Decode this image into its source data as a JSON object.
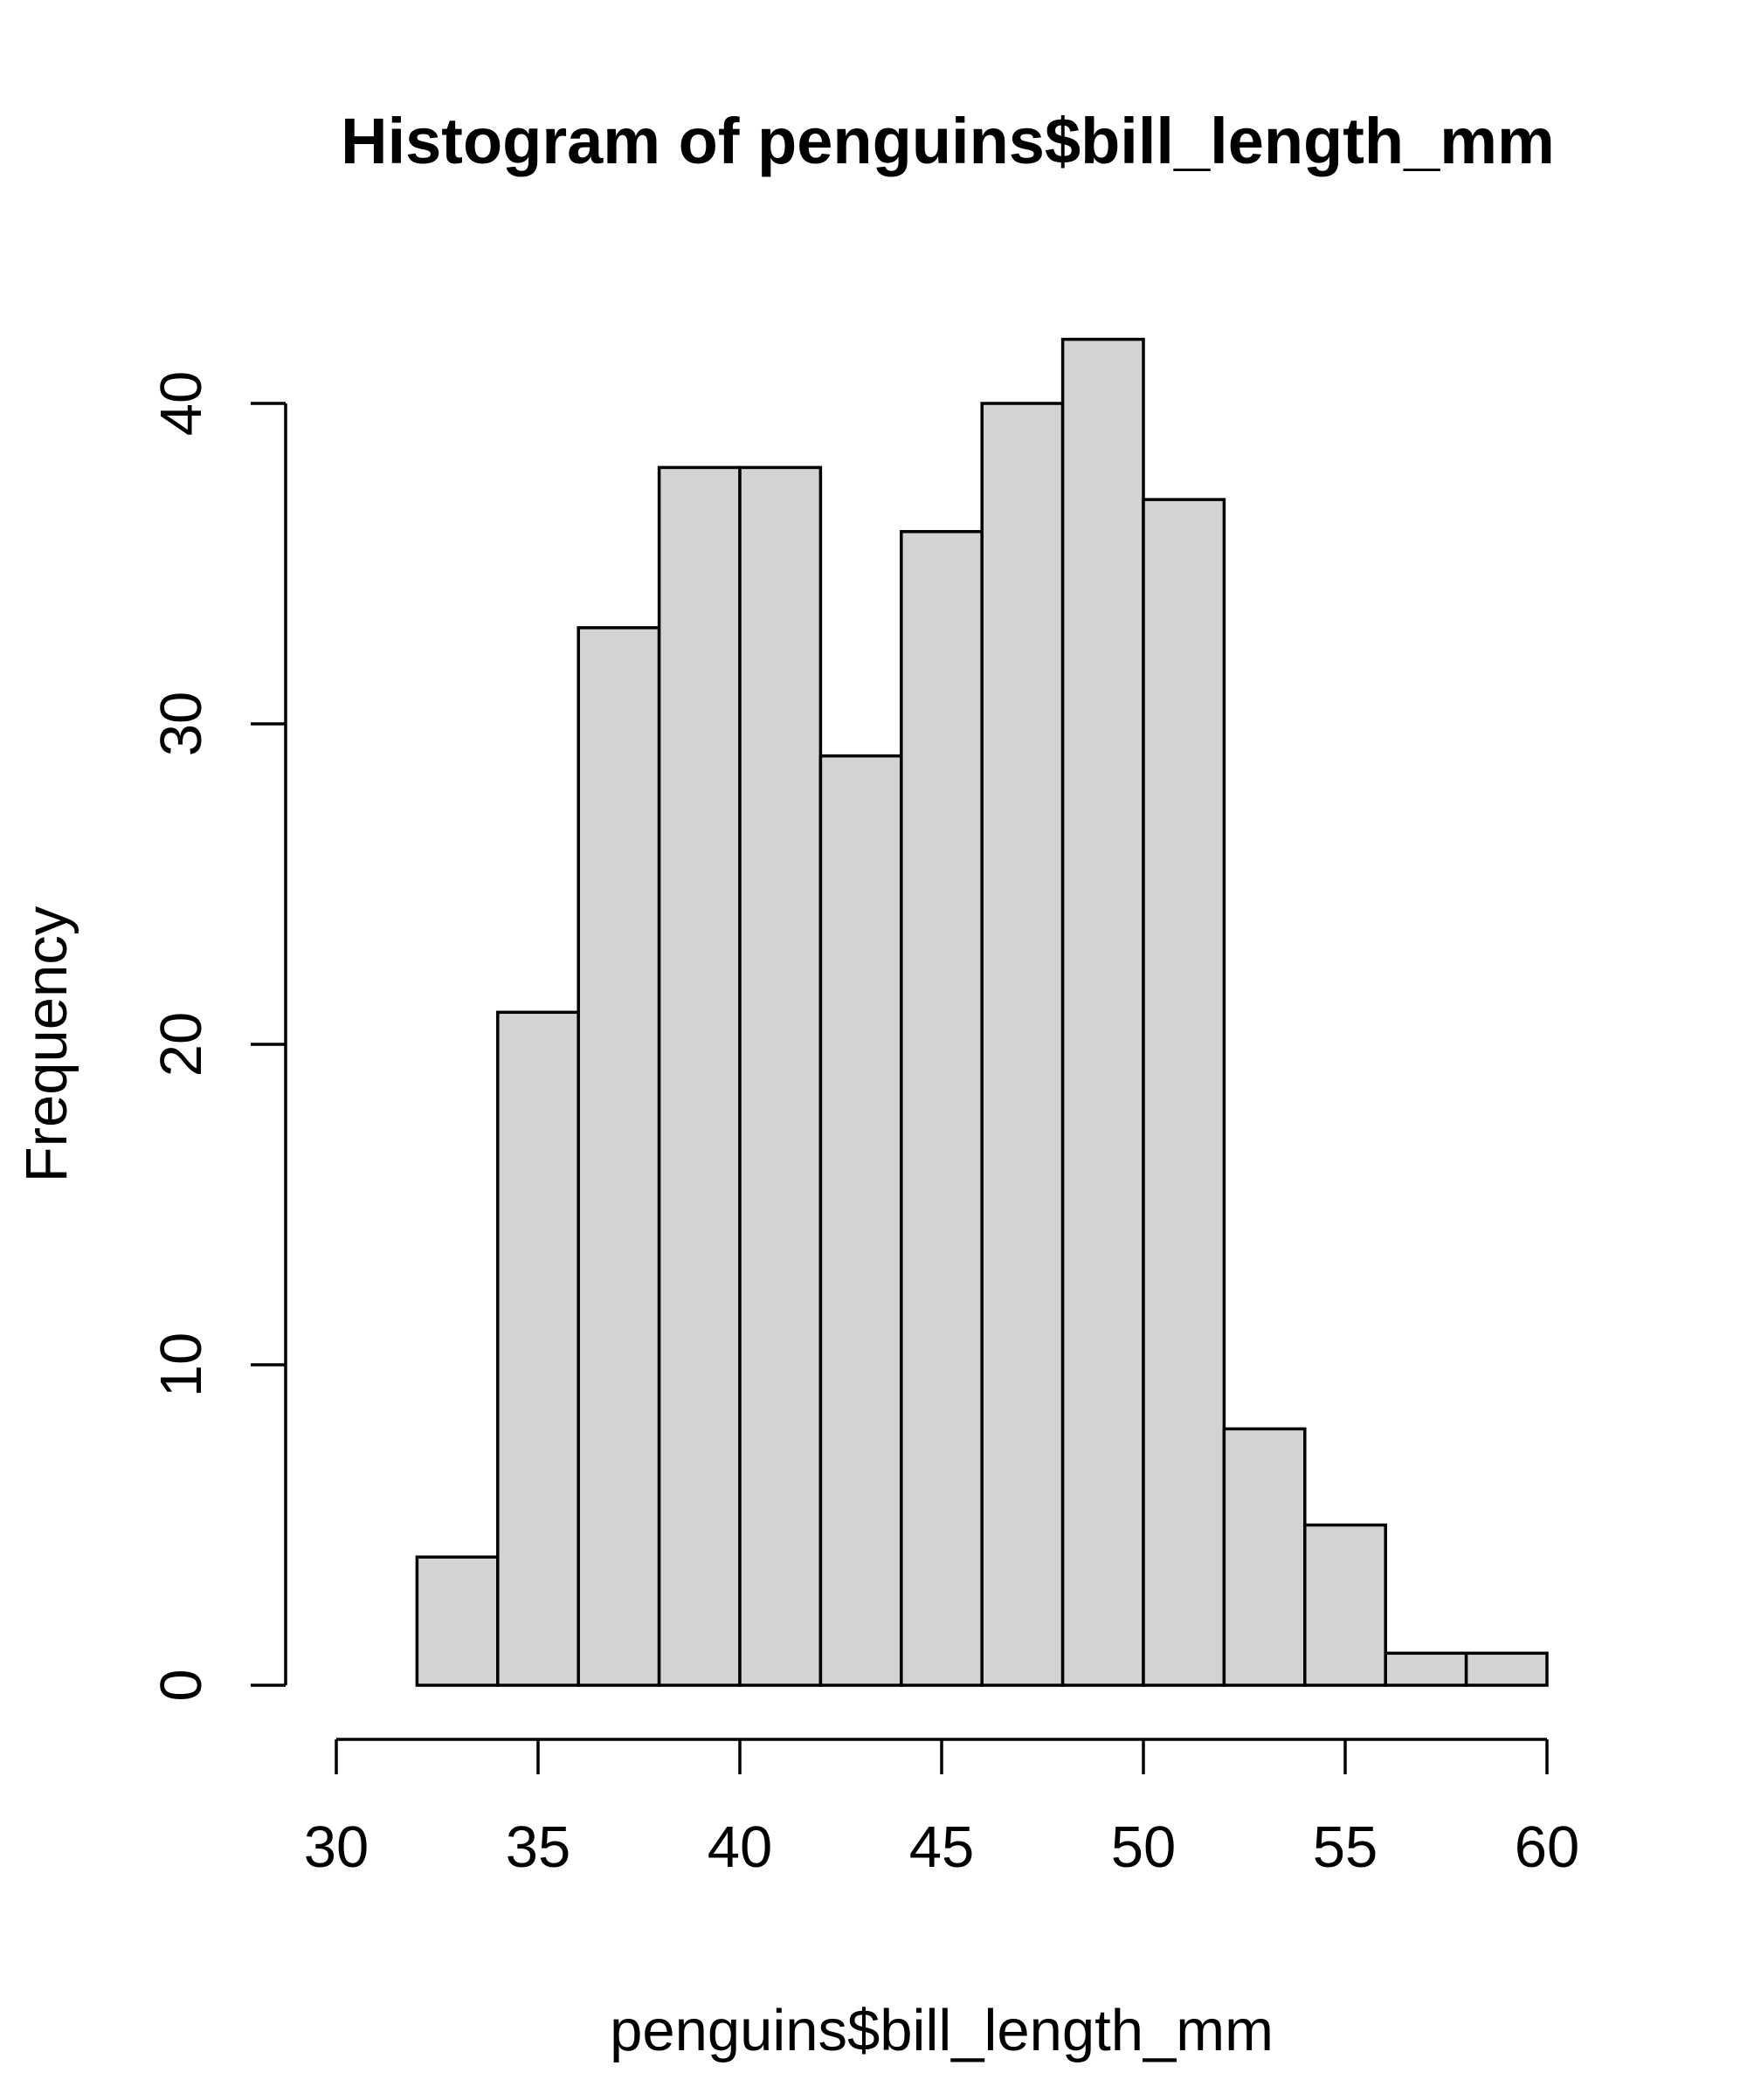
{
  "title": "Histogram of penguins$bill_length_mm",
  "chart_data": {
    "type": "bar",
    "subtype": "histogram",
    "title": "Histogram of penguins$bill_length_mm",
    "xlabel": "penguins$bill_length_mm",
    "ylabel": "Frequency",
    "bins": [
      [
        32,
        34
      ],
      [
        34,
        36
      ],
      [
        36,
        38
      ],
      [
        38,
        40
      ],
      [
        40,
        42
      ],
      [
        42,
        44
      ],
      [
        44,
        46
      ],
      [
        46,
        48
      ],
      [
        48,
        50
      ],
      [
        50,
        52
      ],
      [
        52,
        54
      ],
      [
        54,
        56
      ],
      [
        56,
        58
      ],
      [
        58,
        60
      ]
    ],
    "counts": [
      4,
      21,
      33,
      38,
      38,
      29,
      36,
      40,
      42,
      37,
      8,
      5,
      1,
      1
    ],
    "x_ticks": [
      30,
      35,
      40,
      45,
      50,
      55,
      60
    ],
    "y_ticks": [
      0,
      10,
      20,
      30,
      40
    ],
    "xlim": [
      30,
      60
    ],
    "ylim": [
      0,
      42
    ],
    "grid": false,
    "legend_position": "none",
    "bar_fill": "#d3d3d3",
    "bar_border": "#000000",
    "axis_color": "#000000",
    "background": "#ffffff"
  }
}
